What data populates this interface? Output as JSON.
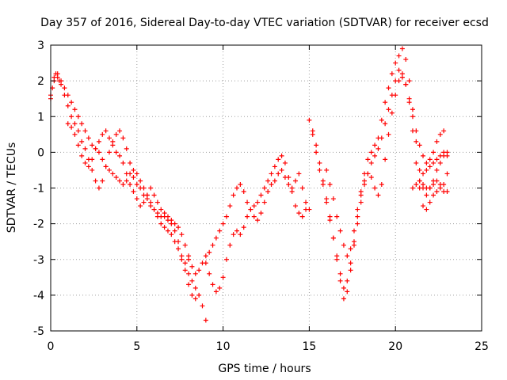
{
  "chart_data": {
    "type": "scatter",
    "title": "Day 357 of 2016, Sidereal Day-to-day VTEC variation (SDTVAR) for receiver ecsd",
    "xlabel": "GPS time / hours",
    "ylabel": "SDTVAR / TECUs",
    "xlim": [
      0,
      25
    ],
    "ylim": [
      -5,
      3
    ],
    "xticks": [
      "0",
      "5",
      "10",
      "15",
      "20",
      "25"
    ],
    "yticks": [
      "-5",
      "-4",
      "-3",
      "-2",
      "-1",
      "0",
      "1",
      "2",
      "3"
    ],
    "grid": true,
    "marker": "plus",
    "color": "#ff0000",
    "series": [
      {
        "x": [
          0.0,
          0.1,
          0.2,
          0.3,
          0.4,
          0.5,
          0.6,
          0.8,
          1.0,
          1.2,
          1.4,
          1.6,
          1.8,
          2.0,
          2.2,
          2.4,
          2.6,
          2.8,
          3.0,
          3.2,
          3.4,
          3.6,
          3.8,
          4.0,
          4.2,
          4.4,
          4.6,
          4.8,
          5.0,
          5.2,
          5.4,
          5.6,
          5.8,
          6.0,
          6.2,
          6.4,
          6.6,
          6.8,
          7.0,
          7.2,
          7.4,
          7.6,
          7.8,
          8.0,
          8.2,
          8.4,
          8.6,
          8.8,
          9.0
        ],
        "y": [
          1.5,
          1.8,
          2.1,
          2.2,
          2.1,
          2.0,
          1.9,
          1.6,
          1.3,
          1.0,
          0.8,
          0.6,
          0.3,
          0.1,
          -0.2,
          -0.5,
          -0.8,
          -1.0,
          -0.8,
          -0.4,
          0.0,
          0.3,
          0.5,
          0.6,
          0.4,
          0.1,
          -0.3,
          -0.7,
          -0.9,
          -1.0,
          -1.2,
          -1.3,
          -1.5,
          -1.6,
          -1.7,
          -1.8,
          -1.8,
          -1.9,
          -2.0,
          -2.2,
          -2.5,
          -2.9,
          -3.1,
          -3.4,
          -3.6,
          -3.8,
          -4.0,
          -4.3,
          -4.7
        ]
      },
      {
        "x": [
          0.0,
          0.2,
          0.4,
          0.6,
          0.8,
          1.0,
          1.2,
          1.4,
          1.6,
          1.8,
          2.0,
          2.2,
          2.4,
          2.6,
          2.8,
          3.0,
          3.2,
          3.4,
          3.6,
          3.8,
          4.0,
          4.2,
          4.4,
          4.6,
          4.8,
          5.0,
          5.2,
          5.4,
          5.6,
          5.8,
          6.0,
          6.2,
          6.4,
          6.6,
          6.8,
          7.0,
          7.2,
          7.4,
          7.6,
          7.8,
          8.0,
          8.2,
          8.4
        ],
        "y": [
          1.6,
          2.0,
          2.2,
          2.0,
          1.8,
          1.6,
          1.4,
          1.2,
          1.0,
          0.8,
          0.6,
          0.4,
          0.2,
          0.1,
          0.0,
          -0.2,
          -0.4,
          -0.5,
          -0.6,
          -0.7,
          -0.8,
          -0.9,
          -0.8,
          -0.6,
          -0.5,
          -0.6,
          -0.8,
          -1.0,
          -1.2,
          -1.4,
          -1.6,
          -1.8,
          -2.0,
          -2.1,
          -2.2,
          -2.3,
          -2.5,
          -2.7,
          -3.0,
          -3.3,
          -3.7,
          -4.0,
          -4.1
        ]
      },
      {
        "x": [
          1.0,
          1.2,
          1.4,
          1.6,
          1.8,
          2.0,
          2.2,
          2.4,
          2.6,
          2.8,
          3.0,
          3.2,
          3.4,
          3.6,
          3.8,
          4.0,
          4.2,
          4.4,
          4.6,
          4.8,
          5.0,
          5.2,
          5.4,
          5.6,
          5.8,
          6.0,
          6.2,
          6.4,
          6.6,
          6.8,
          7.0,
          7.2,
          7.4,
          7.6,
          7.8,
          8.0
        ],
        "y": [
          0.8,
          0.7,
          0.5,
          0.2,
          -0.1,
          -0.3,
          -0.4,
          -0.2,
          0.1,
          0.3,
          0.5,
          0.6,
          0.4,
          0.2,
          0.0,
          -0.1,
          -0.3,
          -0.6,
          -0.9,
          -1.1,
          -1.3,
          -1.5,
          -1.4,
          -1.2,
          -1.0,
          -1.2,
          -1.4,
          -1.6,
          -1.7,
          -1.8,
          -1.9,
          -2.0,
          -2.1,
          -2.3,
          -2.6,
          -2.9
        ]
      },
      {
        "x": [
          8.0,
          8.2,
          8.4,
          8.6,
          8.8,
          9.0,
          9.2,
          9.4,
          9.6,
          9.8,
          10.0,
          10.2,
          10.4,
          10.6,
          10.8,
          11.0,
          11.2,
          11.4,
          11.6,
          11.8,
          12.0,
          12.2,
          12.4,
          12.6,
          12.8,
          13.0,
          13.2,
          13.4,
          13.6,
          13.8,
          14.0,
          14.2,
          14.4,
          14.6,
          14.8,
          15.0
        ],
        "y": [
          -3.0,
          -3.2,
          -3.4,
          -3.3,
          -3.1,
          -2.9,
          -2.8,
          -2.6,
          -2.4,
          -2.2,
          -2.0,
          -1.8,
          -1.5,
          -1.2,
          -1.0,
          -0.9,
          -1.1,
          -1.4,
          -1.6,
          -1.8,
          -1.9,
          -1.7,
          -1.4,
          -1.1,
          -0.9,
          -0.8,
          -0.6,
          -0.5,
          -0.7,
          -0.9,
          -1.0,
          -0.8,
          -0.6,
          -1.0,
          -1.4,
          -1.6
        ]
      },
      {
        "x": [
          9.0,
          9.2,
          9.4,
          9.6,
          9.8,
          10.0,
          10.2,
          10.4,
          10.6,
          10.8,
          11.0,
          11.2,
          11.4,
          11.6,
          11.8,
          12.0,
          12.2,
          12.4,
          12.6,
          12.8,
          13.0,
          13.2,
          13.4,
          13.6,
          13.8,
          14.0,
          14.2,
          14.4,
          14.6,
          14.8
        ],
        "y": [
          -3.1,
          -3.4,
          -3.7,
          -3.9,
          -3.8,
          -3.5,
          -3.0,
          -2.6,
          -2.3,
          -2.2,
          -2.3,
          -2.1,
          -1.8,
          -1.6,
          -1.5,
          -1.4,
          -1.2,
          -1.0,
          -0.8,
          -0.6,
          -0.4,
          -0.2,
          -0.1,
          -0.3,
          -0.7,
          -1.1,
          -1.5,
          -1.7,
          -1.8,
          -1.6
        ]
      },
      {
        "x": [
          15.0,
          15.2,
          15.4,
          15.6,
          15.8,
          16.0,
          16.2,
          16.4,
          16.6,
          16.8,
          17.0,
          17.2,
          17.4,
          17.6,
          17.8,
          18.0,
          18.2,
          18.4,
          18.6,
          18.8,
          19.0,
          19.2,
          19.4,
          19.6,
          19.8,
          20.0,
          20.2,
          20.4,
          20.6,
          20.8,
          21.0,
          21.2,
          21.4,
          21.6,
          21.8,
          22.0,
          22.2,
          22.4,
          22.6,
          22.8,
          23.0
        ],
        "y": [
          0.9,
          0.5,
          0.0,
          -0.5,
          -0.9,
          -1.4,
          -1.9,
          -2.4,
          -2.9,
          -3.4,
          -3.8,
          -3.6,
          -3.1,
          -2.5,
          -1.8,
          -1.2,
          -0.6,
          -0.2,
          0.0,
          0.2,
          0.4,
          0.9,
          1.4,
          1.8,
          2.2,
          2.5,
          2.7,
          2.9,
          2.6,
          2.0,
          1.2,
          0.3,
          -0.5,
          -1.0,
          -1.2,
          -1.0,
          -0.8,
          -0.5,
          -0.3,
          -0.1,
          0.0
        ]
      },
      {
        "x": [
          15.2,
          15.4,
          15.6,
          15.8,
          16.0,
          16.2,
          16.4,
          16.6,
          16.8,
          17.0,
          17.2,
          17.4,
          17.6,
          17.8,
          18.0,
          18.2,
          18.4,
          18.6,
          18.8,
          19.0,
          19.2,
          19.4,
          19.6,
          19.8,
          20.0,
          20.2,
          20.4,
          20.6,
          20.8,
          21.0,
          21.2,
          21.4,
          21.6,
          21.8,
          22.0,
          22.2,
          22.4,
          22.6,
          22.8,
          23.0
        ],
        "y": [
          0.6,
          0.2,
          -0.3,
          -0.8,
          -1.3,
          -1.8,
          -2.4,
          -3.0,
          -3.6,
          -4.1,
          -3.9,
          -3.3,
          -2.6,
          -2.0,
          -1.4,
          -0.9,
          -0.6,
          -0.3,
          -0.1,
          0.1,
          0.4,
          0.8,
          1.2,
          1.6,
          2.0,
          2.3,
          2.2,
          1.9,
          1.4,
          0.6,
          -0.3,
          -1.0,
          -1.5,
          -1.6,
          -1.4,
          -1.2,
          -1.1,
          -1.0,
          -1.1,
          -1.1
        ]
      },
      {
        "x": [
          16.0,
          16.2,
          16.4,
          16.6,
          16.8,
          17.0,
          17.2,
          17.4,
          17.6,
          17.8,
          18.0,
          18.2,
          18.4,
          18.6,
          18.8,
          19.0,
          19.2,
          19.4,
          19.6,
          19.8,
          20.0,
          20.2,
          20.4,
          20.6,
          20.8,
          21.0,
          21.2,
          21.4,
          21.6,
          21.8,
          22.0,
          22.2,
          22.4,
          22.6,
          22.8
        ],
        "y": [
          -0.5,
          -0.9,
          -1.3,
          -1.8,
          -2.2,
          -2.6,
          -2.9,
          -2.7,
          -2.2,
          -1.6,
          -1.1,
          -0.8,
          -0.6,
          -0.7,
          -1.0,
          -1.2,
          -0.9,
          -0.2,
          0.5,
          1.1,
          1.6,
          2.0,
          2.1,
          1.9,
          1.5,
          1.0,
          0.6,
          0.2,
          -0.1,
          -0.3,
          -0.2,
          0.0,
          0.3,
          0.5,
          0.6
        ]
      },
      {
        "x": [
          21.0,
          21.2,
          21.4,
          21.6,
          21.8,
          22.0,
          22.2,
          22.4,
          22.6,
          22.8,
          23.0
        ],
        "y": [
          -1.0,
          -0.9,
          -0.8,
          -0.6,
          -0.5,
          -0.4,
          -0.3,
          -0.2,
          -0.1,
          0.0,
          -0.1
        ]
      },
      {
        "x": [
          21.4,
          21.6,
          21.8,
          22.0,
          22.2,
          22.4,
          22.6,
          22.8,
          23.0
        ],
        "y": [
          -0.8,
          -0.9,
          -1.0,
          -1.0,
          -0.9,
          -0.8,
          -0.9,
          -0.9,
          -0.6
        ]
      }
    ]
  }
}
